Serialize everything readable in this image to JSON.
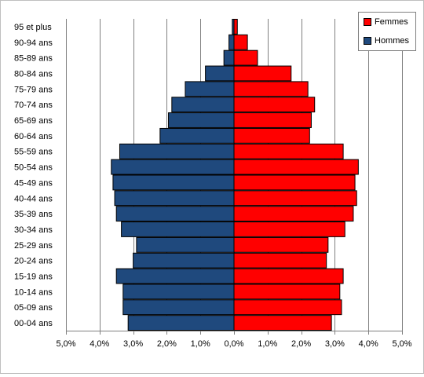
{
  "chart_data": {
    "type": "bar",
    "orientation": "horizontal",
    "title": "",
    "xlabel": "",
    "ylabel": "",
    "categories": [
      "95 et plus",
      "90-94 ans",
      "85-89 ans",
      "80-84 ans",
      "75-79 ans",
      "70-74 ans",
      "65-69 ans",
      "60-64 ans",
      "55-59 ans",
      "50-54 ans",
      "45-49 ans",
      "40-44 ans",
      "35-39 ans",
      "30-34 ans",
      "25-29 ans",
      "20-24 ans",
      "15-19 ans",
      "10-14 ans",
      "05-09 ans",
      "00-04 ans"
    ],
    "series": [
      {
        "name": "Femmes",
        "color": "#ff0000",
        "side": "right",
        "values": [
          0.1,
          0.4,
          0.7,
          1.7,
          2.2,
          2.4,
          2.3,
          2.25,
          3.25,
          3.7,
          3.6,
          3.65,
          3.55,
          3.3,
          2.8,
          2.75,
          3.25,
          3.15,
          3.2,
          2.9
        ]
      },
      {
        "name": "Hommes",
        "color": "#1f497d",
        "side": "left",
        "values": [
          0.05,
          0.15,
          0.3,
          0.85,
          1.45,
          1.85,
          1.95,
          2.2,
          3.4,
          3.65,
          3.6,
          3.55,
          3.5,
          3.35,
          2.9,
          3.0,
          3.5,
          3.3,
          3.3,
          3.15
        ]
      }
    ],
    "xlim": [
      -5,
      5
    ],
    "xticks": [
      -5,
      -4,
      -3,
      -2,
      -1,
      0,
      1,
      2,
      3,
      4,
      5
    ],
    "xtick_labels": [
      "5,0%",
      "4,0%",
      "3,0%",
      "2,0%",
      "1,0%",
      "0,0%",
      "1,0%",
      "2,0%",
      "3,0%",
      "4,0%",
      "5,0%"
    ],
    "grid": true,
    "legend_position": "top-right"
  }
}
